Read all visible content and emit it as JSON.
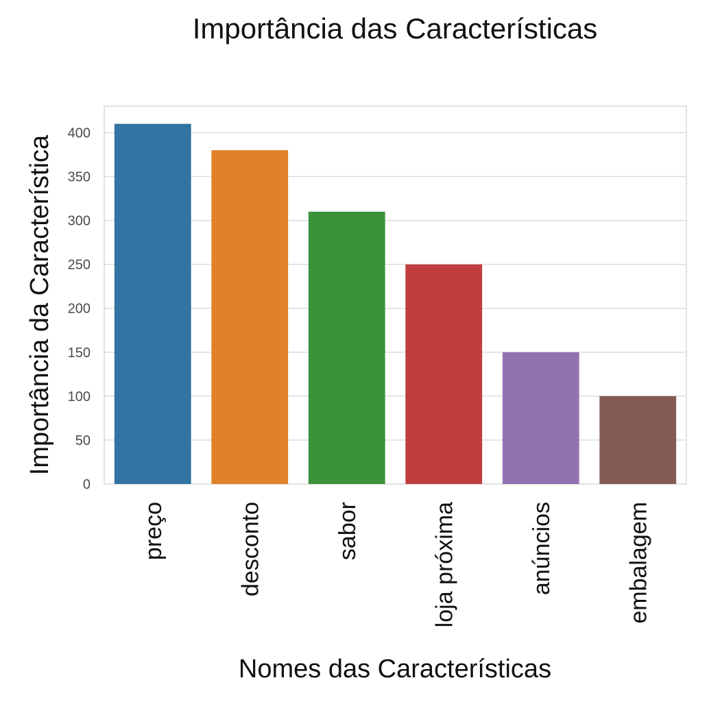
{
  "chart_data": {
    "type": "bar",
    "title": "Importância das Características",
    "xlabel": "Nomes das Características",
    "ylabel": "Importância da Característica",
    "categories": [
      "preço",
      "desconto",
      "sabor",
      "loja próxima",
      "anúncios",
      "embalagem"
    ],
    "values": [
      410,
      380,
      310,
      250,
      150,
      100
    ],
    "ylim": [
      0,
      430
    ],
    "yticks": [
      0,
      50,
      100,
      150,
      200,
      250,
      300,
      350,
      400
    ],
    "grid": true,
    "colors": [
      "#3274a1",
      "#e1812c",
      "#3a923a",
      "#c03d3e",
      "#9372b2",
      "#845b53"
    ]
  }
}
